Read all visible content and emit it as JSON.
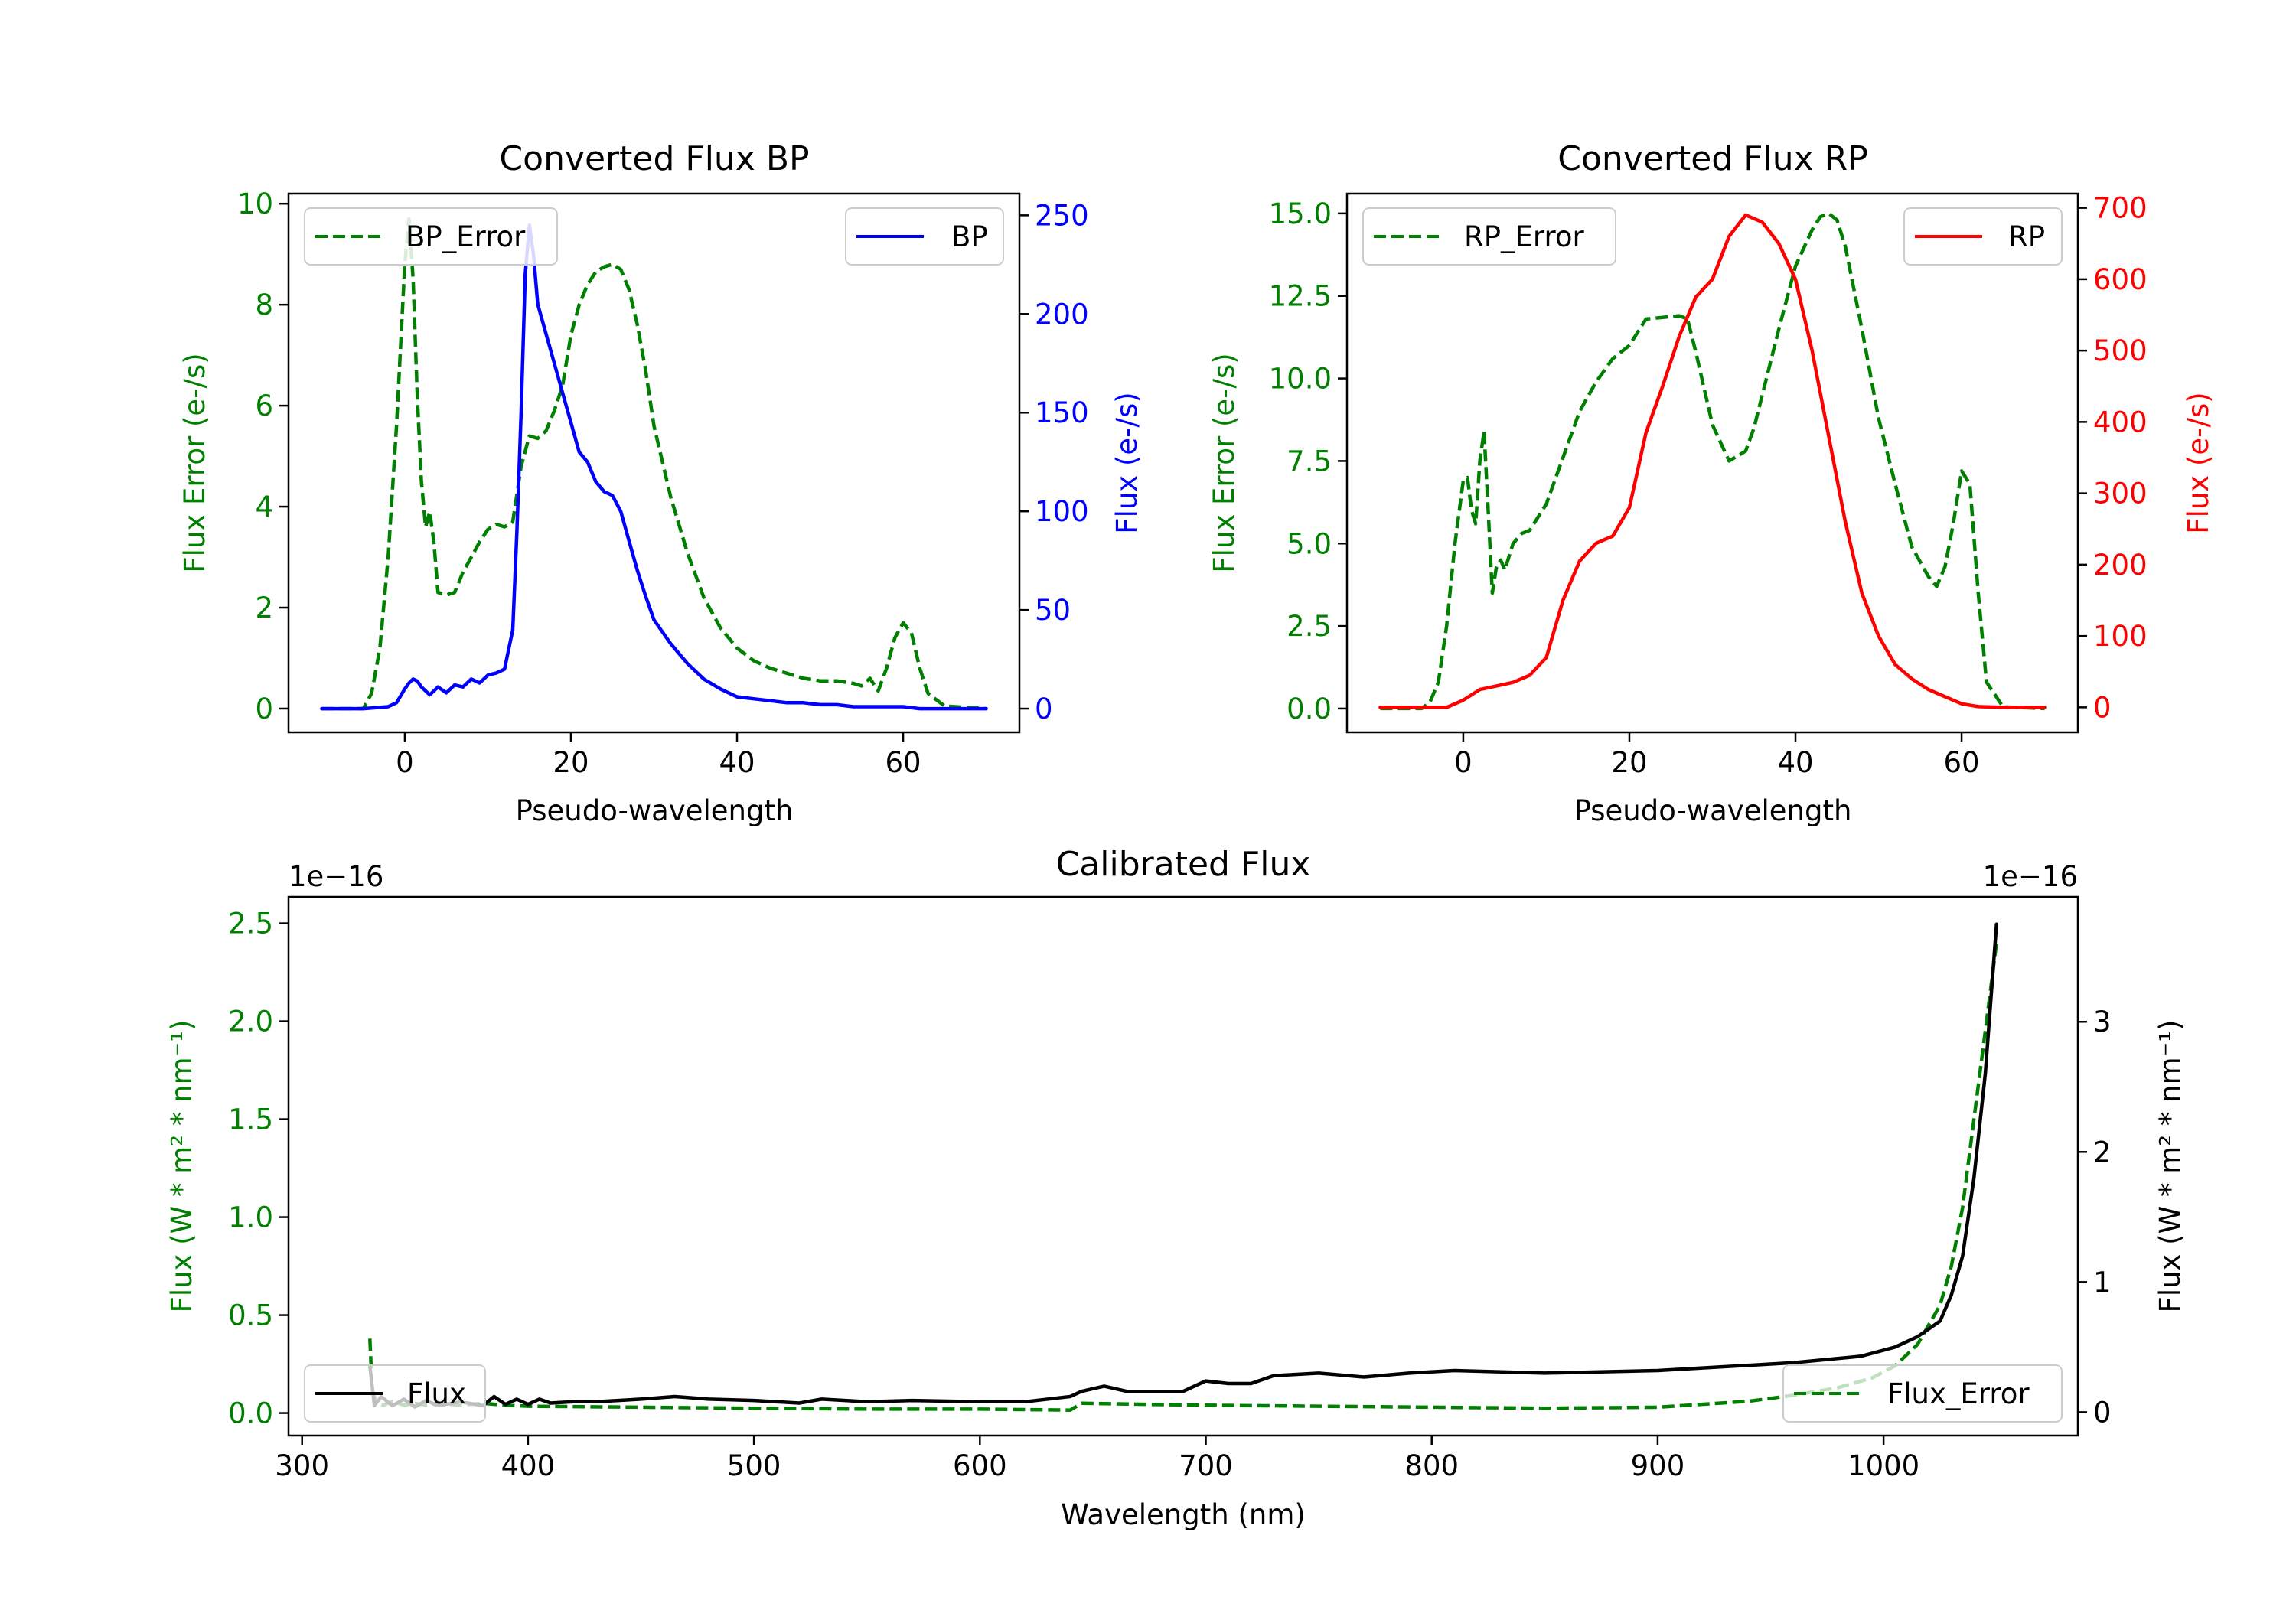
{
  "chart_data": [
    {
      "type": "line",
      "title": "Converted Flux BP",
      "xlabel": "Pseudo-wavelength",
      "ylabel_left": "Flux Error (e-/s)",
      "ylabel_right": "Flux (e-/s)",
      "xlim": [
        -14,
        74
      ],
      "ylim_left": [
        -0.47,
        10.2
      ],
      "ylim_right": [
        -12,
        261
      ],
      "xticks": [
        0,
        20,
        40,
        60
      ],
      "xtick_labels": [
        "0",
        "20",
        "40",
        "60"
      ],
      "yticks_left": [
        0,
        2,
        4,
        6,
        8,
        10
      ],
      "ytick_labels_left": [
        "0",
        "2",
        "4",
        "6",
        "8",
        "10"
      ],
      "yticks_right": [
        0,
        50,
        100,
        150,
        200,
        250
      ],
      "ytick_labels_right": [
        "0",
        "50",
        "100",
        "150",
        "200",
        "250"
      ],
      "colors": {
        "left_axis": "#008000",
        "right_axis": "#0000ff"
      },
      "series": [
        {
          "name": "BP_Error",
          "axis": "left",
          "style": "dashed",
          "color": "#008000",
          "x": [
            -10,
            -5,
            -4,
            -3,
            -2,
            -1,
            0,
            0.5,
            1,
            1.5,
            2,
            2.5,
            3,
            3.5,
            4,
            5,
            6,
            7,
            8,
            9,
            10,
            11,
            12,
            13,
            14,
            15,
            16,
            17,
            18,
            19,
            20,
            21,
            22,
            23,
            24,
            25,
            26,
            27,
            28,
            29,
            30,
            32,
            34,
            36,
            38,
            40,
            42,
            44,
            46,
            48,
            50,
            52,
            54,
            55,
            56,
            57,
            58,
            59,
            60,
            61,
            62,
            63,
            65,
            70
          ],
          "y": [
            0,
            0,
            0.3,
            1.2,
            3.0,
            5.6,
            8.8,
            9.7,
            8.5,
            6.2,
            4.5,
            3.6,
            3.9,
            3.3,
            2.3,
            2.25,
            2.3,
            2.7,
            3.0,
            3.3,
            3.55,
            3.65,
            3.6,
            3.7,
            4.8,
            5.4,
            5.35,
            5.5,
            5.9,
            6.4,
            7.4,
            8.0,
            8.4,
            8.65,
            8.75,
            8.8,
            8.7,
            8.3,
            7.6,
            6.7,
            5.6,
            4.2,
            3.1,
            2.2,
            1.6,
            1.2,
            0.95,
            0.8,
            0.7,
            0.6,
            0.55,
            0.55,
            0.5,
            0.45,
            0.6,
            0.35,
            0.8,
            1.4,
            1.7,
            1.5,
            0.8,
            0.3,
            0.05,
            0
          ]
        },
        {
          "name": "BP",
          "axis": "right",
          "style": "solid",
          "color": "#0000ff",
          "x": [
            -10,
            -5,
            -2,
            -1,
            0,
            0.5,
            1,
            1.5,
            2,
            3,
            4,
            5,
            6,
            7,
            8,
            9,
            10,
            11,
            12,
            13,
            13.5,
            14,
            14.5,
            15,
            15.5,
            16,
            17,
            18,
            19,
            20,
            21,
            22,
            23,
            24,
            25,
            26,
            27,
            28,
            29,
            30,
            32,
            34,
            36,
            38,
            40,
            42,
            44,
            46,
            48,
            50,
            52,
            54,
            56,
            58,
            60,
            62,
            65,
            70
          ],
          "y": [
            0,
            0,
            1,
            3,
            10,
            13,
            15,
            14,
            11,
            7,
            11,
            8,
            12,
            11,
            15,
            13,
            17,
            18,
            20,
            40,
            90,
            150,
            220,
            245,
            230,
            205,
            190,
            175,
            160,
            145,
            130,
            125,
            115,
            110,
            108,
            100,
            85,
            70,
            57,
            45,
            33,
            23,
            15,
            10,
            6,
            5,
            4,
            3,
            3,
            2,
            2,
            1,
            1,
            1,
            1,
            0,
            0,
            0
          ]
        }
      ],
      "legend": [
        {
          "label": "BP_Error",
          "location": "upper-left"
        },
        {
          "label": "BP",
          "location": "upper-right"
        }
      ]
    },
    {
      "type": "line",
      "title": "Converted Flux RP",
      "xlabel": "Pseudo-wavelength",
      "ylabel_left": "Flux Error (e-/s)",
      "ylabel_right": "Flux (e-/s)",
      "xlim": [
        -14,
        74
      ],
      "ylim_left": [
        -0.72,
        15.6
      ],
      "ylim_right": [
        -35,
        720
      ],
      "xticks": [
        0,
        20,
        40,
        60
      ],
      "xtick_labels": [
        "0",
        "20",
        "40",
        "60"
      ],
      "yticks_left": [
        0,
        2.5,
        5,
        7.5,
        10,
        12.5,
        15
      ],
      "ytick_labels_left": [
        "0.0",
        "2.5",
        "5.0",
        "7.5",
        "10.0",
        "12.5",
        "15.0"
      ],
      "yticks_right": [
        0,
        100,
        200,
        300,
        400,
        500,
        600,
        700
      ],
      "ytick_labels_right": [
        "0",
        "100",
        "200",
        "300",
        "400",
        "500",
        "600",
        "700"
      ],
      "colors": {
        "left_axis": "#008000",
        "right_axis": "#ff0000"
      },
      "series": [
        {
          "name": "RP_Error",
          "axis": "left",
          "style": "dashed",
          "color": "#008000",
          "x": [
            -10,
            -5,
            -4,
            -3,
            -2,
            -1,
            0,
            0.5,
            1,
            1.5,
            2,
            2.5,
            3,
            3.5,
            4,
            4.5,
            5,
            6,
            7,
            8,
            10,
            12,
            14,
            16,
            18,
            20,
            22,
            24,
            26,
            27,
            28,
            30,
            32,
            34,
            35,
            36,
            38,
            40,
            42,
            43,
            44,
            45,
            46,
            48,
            50,
            52,
            54,
            56,
            57,
            58,
            59,
            60,
            61,
            62,
            63,
            65,
            70
          ],
          "y": [
            0,
            0,
            0.2,
            0.8,
            2.5,
            5.0,
            6.9,
            7.0,
            6.0,
            5.6,
            7.5,
            8.4,
            6.0,
            3.5,
            4.3,
            4.5,
            4.2,
            5.0,
            5.3,
            5.4,
            6.2,
            7.6,
            9.0,
            9.9,
            10.6,
            11.0,
            11.8,
            11.85,
            11.9,
            11.8,
            10.8,
            8.6,
            7.5,
            7.8,
            8.5,
            9.5,
            11.5,
            13.4,
            14.5,
            14.9,
            15.0,
            14.8,
            14.0,
            11.5,
            8.8,
            6.8,
            4.9,
            4.0,
            3.7,
            4.3,
            5.6,
            7.2,
            6.8,
            3.5,
            0.8,
            0.05,
            0
          ]
        },
        {
          "name": "RP",
          "axis": "right",
          "style": "solid",
          "color": "#ff0000",
          "x": [
            -10,
            -5,
            -2,
            0,
            2,
            4,
            6,
            8,
            10,
            12,
            14,
            16,
            17,
            18,
            20,
            22,
            24,
            26,
            28,
            30,
            32,
            34,
            36,
            38,
            40,
            42,
            44,
            46,
            48,
            50,
            52,
            54,
            56,
            58,
            60,
            62,
            65,
            70
          ],
          "y": [
            0,
            0,
            0,
            10,
            25,
            30,
            35,
            45,
            70,
            150,
            205,
            230,
            235,
            240,
            280,
            385,
            450,
            520,
            575,
            600,
            660,
            690,
            680,
            650,
            600,
            500,
            380,
            260,
            160,
            100,
            60,
            40,
            25,
            15,
            5,
            1,
            0,
            0
          ]
        }
      ],
      "legend": [
        {
          "label": "RP_Error",
          "location": "upper-left"
        },
        {
          "label": "RP",
          "location": "upper-right"
        }
      ]
    },
    {
      "type": "line",
      "title": "Calibrated Flux",
      "xlabel": "Wavelength (nm)",
      "ylabel_left": "Flux (W * m² * nm⁻¹)",
      "ylabel_right": "Flux (W * m² * nm⁻¹)",
      "offset_text_left": "1e−16",
      "offset_text_right": "1e−16",
      "xlim": [
        294,
        1086
      ],
      "ylim_left": [
        -0.115,
        2.635
      ],
      "ylim_right": [
        -0.18,
        3.96
      ],
      "xticks": [
        300,
        400,
        500,
        600,
        700,
        800,
        900,
        1000
      ],
      "xtick_labels": [
        "300",
        "400",
        "500",
        "600",
        "700",
        "800",
        "900",
        "1000"
      ],
      "yticks_left": [
        0,
        0.5,
        1.0,
        1.5,
        2.0,
        2.5
      ],
      "ytick_labels_left": [
        "0.0",
        "0.5",
        "1.0",
        "1.5",
        "2.0",
        "2.5"
      ],
      "yticks_right": [
        0,
        1,
        2,
        3
      ],
      "ytick_labels_right": [
        "0",
        "1",
        "2",
        "3"
      ],
      "colors": {
        "left_axis": "#008000",
        "right_axis": "#000000"
      },
      "series": [
        {
          "name": "Flux_Error",
          "axis": "left",
          "style": "dashed",
          "color": "#008000",
          "x": [
            330,
            331,
            333,
            336,
            340,
            345,
            350,
            355,
            360,
            370,
            380,
            390,
            400,
            450,
            500,
            550,
            600,
            640,
            645,
            700,
            750,
            800,
            850,
            900,
            940,
            960,
            980,
            995,
            1005,
            1015,
            1025,
            1030,
            1035,
            1040,
            1045,
            1050
          ],
          "y": [
            0.38,
            0.12,
            0.05,
            0.04,
            0.06,
            0.04,
            0.05,
            0.04,
            0.05,
            0.04,
            0.05,
            0.04,
            0.035,
            0.03,
            0.025,
            0.02,
            0.02,
            0.015,
            0.05,
            0.04,
            0.035,
            0.03,
            0.025,
            0.03,
            0.06,
            0.09,
            0.13,
            0.18,
            0.24,
            0.35,
            0.55,
            0.75,
            1.05,
            1.5,
            1.95,
            2.4
          ]
        },
        {
          "name": "Flux",
          "axis": "right",
          "style": "solid",
          "color": "#000000",
          "x": [
            330,
            332,
            335,
            340,
            345,
            350,
            355,
            360,
            370,
            380,
            385,
            390,
            395,
            400,
            405,
            410,
            420,
            430,
            440,
            450,
            465,
            480,
            500,
            520,
            530,
            550,
            570,
            600,
            620,
            640,
            645,
            655,
            665,
            690,
            700,
            710,
            720,
            730,
            750,
            770,
            790,
            810,
            850,
            900,
            930,
            960,
            990,
            1005,
            1015,
            1025,
            1030,
            1035,
            1040,
            1045,
            1050
          ],
          "y": [
            0.35,
            0.05,
            0.12,
            0.05,
            0.1,
            0.04,
            0.09,
            0.05,
            0.08,
            0.05,
            0.12,
            0.06,
            0.1,
            0.06,
            0.1,
            0.07,
            0.08,
            0.08,
            0.09,
            0.1,
            0.12,
            0.1,
            0.09,
            0.07,
            0.1,
            0.08,
            0.09,
            0.08,
            0.08,
            0.12,
            0.16,
            0.2,
            0.16,
            0.16,
            0.24,
            0.22,
            0.22,
            0.28,
            0.3,
            0.27,
            0.3,
            0.32,
            0.3,
            0.32,
            0.35,
            0.38,
            0.43,
            0.5,
            0.58,
            0.7,
            0.9,
            1.2,
            1.8,
            2.6,
            3.75
          ]
        }
      ],
      "legend": [
        {
          "label": "Flux",
          "location": "lower-left"
        },
        {
          "label": "Flux_Error",
          "location": "lower-right"
        }
      ]
    }
  ]
}
